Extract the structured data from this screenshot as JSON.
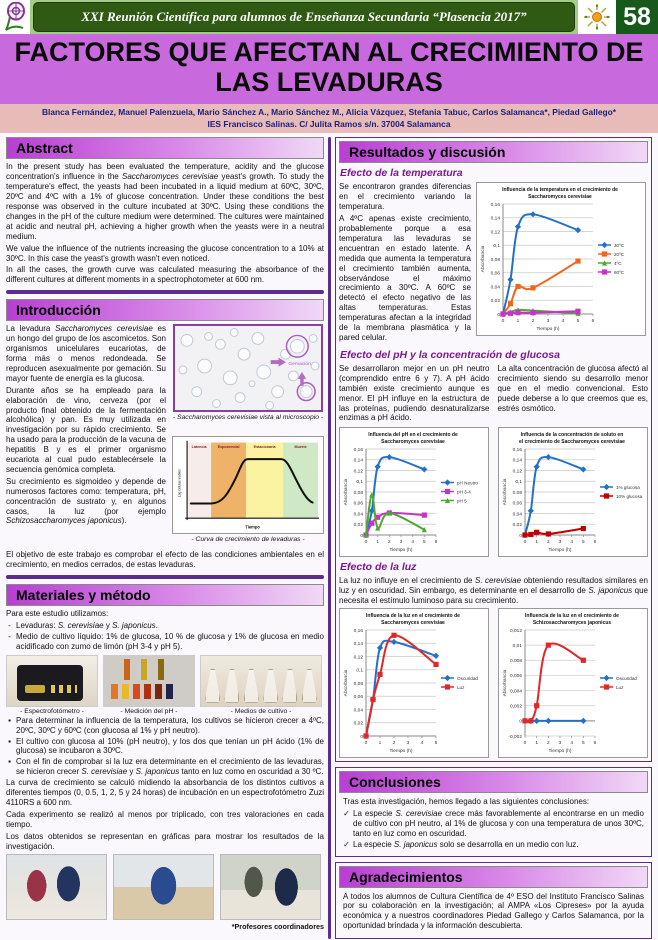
{
  "header": {
    "event_title": "XXI Reunión Científica para alumnos de Enseñanza Secundaria “Plasencia 2017”",
    "poster_number": "58"
  },
  "title": "FACTORES QUE AFECTAN AL CRECIMIENTO DE LAS LEVADURAS",
  "authors": "Blanca Fernández, Manuel Palenzuela, Mario Sánchez A., Mario Sánchez M., Alicia Vázquez, Stefania Tabuc, Carlos Salamanca*, Piedad Gallego*",
  "affiliation": "IES Francisco Salinas. C/ Julita Ramos s/n. 37004 Salamanca",
  "abstract": {
    "heading": "Abstract",
    "p1": "In the present study has been evaluated the temperature, acidity and the glucose concentration's influence in the <i>Saccharomyces cerevisiae</i> yeast's growth. To study the temperature's effect, the yeasts had been incubated in a liquid medium at 60ºC, 30ºC, 20ºC and 4ºC with a 1% of glucose concentration. Under these conditions the best response was observed in the culture incubated at 30ºC. Using these conditions the changes in the pH of the culture medium were determined. The cultures were maintained at acidic and neutral pH, achieving a higher growth when the yeasts were in a neutral medium.",
    "p2": "We value the influence of the nutrients increasing the glucose concentration to a 10% at 30ºC. In this case the yeast's growth wasn't even noticed.",
    "p3": "In all the cases, the growth curve was calculated measuring the absorbance of the different cultures at different moments in a spectrophotometer at 600 nm."
  },
  "introduction": {
    "heading": "Introducción",
    "p1": "La levadura <i>Saccharomyces cerevisiae</i> es un hongo del grupo de los ascomicetos. Son organismos unicelulares eucariotas, de forma más o menos redondeada. Se reproducen asexualmente por gemación. Su mayor fuente de energía es la glucosa.",
    "p2": "Durante años se ha empleado para la elaboración de vino, cerveza (por el producto final obtenido de la fermentación alcohólica) y pan. Es muy utilizada en investigación por su rápido crecimiento. Se ha usado para la producción de la vacuna de hepatitis B y es el primer organismo eucariota al cual pudo establecérsele la secuencia genómica completa.",
    "p3": "Su crecimiento es sigmoideo y depende de numerosos factores como: temperatura, pH, concentración de sustrato y, en algunos casos, la luz (por ejemplo <i>Schizosaccharomyces japonicus</i>).",
    "objective": "El objetivo de este trabajo es comprobar el efecto de las condiciones ambientales en el crecimiento, en medios cerrados, de estas levaduras.",
    "micro_caption": "- Saccharomyces cerevisiae vista al microscopio -",
    "micro_annotation": "Gemación",
    "growth": {
      "phases": [
        "Latencia",
        "Exponencial",
        "Estacionaria",
        "Muerte"
      ],
      "xlabel": "Tiempo",
      "ylabel": "Log células viables",
      "caption": "- Curva de crecimiento de levaduras -"
    }
  },
  "methods": {
    "heading": "Materiales y método",
    "intro": "Para este estudio utilizamos:",
    "dash_items": [
      "Levaduras: <i>S. cerevisiae</i> y <i>S. japonicus</i>.",
      "Medio de cultivo líquido: 1% de glucosa, 10 % de glucosa y 1% de glucosa en medio acidificado con zumo de limón (pH 3-4 y pH 5)."
    ],
    "photo_captions": [
      "- Espectrofotómetro -",
      "- Medición del pH -",
      "- Medios de cultivo -"
    ],
    "bullet_items": [
      "Para determinar la influencia de la temperatura, los cultivos se hicieron crecer a 4ºC, 20ºC, 30ºC y 60ºC (con glucosa al 1% y pH neutro).",
      "El cultivo con glucosa al 10% (pH neutro), y los dos que tenían un pH ácido (1% de glucosa) se incubaron a 30ºC.",
      "Con el fin de comprobar si la luz era determinante en el crecimiento de las levaduras, se hicieron crecer <i>S. cerevisiae</i> y <i>S. japonicus</i> tanto en luz como en oscuridad a 30 ºC."
    ],
    "p1": "La curva de crecimiento se calculó midiendo la absorbancia de los distintos cultivos a diferentes tiempos (0, 0.5, 1, 2, 5 y 24 horas) de incubación en un espectrofotómetro Zuzi 4110RS a 600 nm.",
    "p2": "Cada experimento se realizó al menos por triplicado, con tres valoraciones en cada tiempo.",
    "p3": "Los datos obtenidos se representan en gráficas para mostrar los resultados de la investigación.",
    "footnote": "*Profesores coordinadores"
  },
  "results": {
    "heading": "Resultados y discusión",
    "temperature": {
      "subheading": "Efecto de la temperatura",
      "p1": "Se encontraron grandes diferencias en el crecimiento variando la temperatura.",
      "p2": "A 4ºC apenas existe crecimiento, probablemente porque a esa temperatura las levaduras se encuentran en estado latente. A medida que aumenta la temperatura el crecimiento también aumenta, observándose el máximo crecimiento a 30ºC. A 60ºC se detectó el efecto negativo de las altas temperaturas. Estas temperaturas afectan a la integridad de la membrana plasmática y la pared celular."
    },
    "ph_glucose": {
      "subheading": "Efecto del pH y la concentración de glucosa",
      "left": "Se desarrollaron mejor en un pH neutro (comprendido entre 6 y 7). A pH ácido también existe crecimiento aunque es menor. El pH influye en la estructura de las proteínas, pudiendo desnaturalizarse enzimas a pH ácido.",
      "right": "La alta concentración de glucosa afectó al crecimiento siendo su desarrollo menor que en el medio convencional. Esto puede deberse a lo que creemos que es, estrés osmótico."
    },
    "light": {
      "subheading": "Efecto de la luz",
      "p": "La luz no influye en el crecimiento de <i>S. cerevisiae</i> obteniendo resultados similares en luz y en oscuridad. Sin embargo, es determinante en el desarrollo de <i>S. japonicus</i> que necesita el estímulo luminoso para su crecimiento."
    }
  },
  "conclusions": {
    "heading": "Conclusiones",
    "intro": "Tras esta investigación, hemos llegado a las siguientes conclusiones:",
    "items": [
      "La especie <i>S. cerevisiae</i> crece más favorablemente al encontrarse en un medio de cultivo con pH neutro, al 1% de glucosa y con una temperatura de unos 30ºC, tanto en luz como en oscuridad.",
      "La especie <i>S. japonicus</i> solo se desarrolla en un medio con luz."
    ]
  },
  "acknowledgements": {
    "heading": "Agradecimientos",
    "p": "A todos los alumnos de Cultura Científica de 4º ESO del Instituto Francisco Salinas por su colaboración en la investigación; al AMPA «Los Cipreses» por la ayuda económica y a nuestros coordinadores Piedad Gallego y Carlos Salamanca, por la oportunidad brindada y la información descubierta."
  },
  "chart_data": [
    {
      "type": "line",
      "title": "Influencia de la temperatura en el crecimiento de Saccharomyces cerevisiae",
      "xlabel": "Tiempo (h)",
      "ylabel": "Absorbancia",
      "x": [
        0,
        0.5,
        1,
        2,
        5
      ],
      "xlim": [
        0,
        6
      ],
      "xtick": 1,
      "ylim": [
        0,
        0.16
      ],
      "ytick": 0.02,
      "grid": true,
      "legend_position": "right",
      "series": [
        {
          "name": "30ºC",
          "color": "#2470C8",
          "marker": "diamond",
          "values": [
            0,
            0.05,
            0.127,
            0.145,
            0.122
          ]
        },
        {
          "name": "20ºC",
          "color": "#F3641D",
          "marker": "square",
          "values": [
            0,
            0.015,
            0.04,
            0.038,
            0.077
          ]
        },
        {
          "name": "4ºC",
          "color": "#4EA72E",
          "marker": "triangle",
          "values": [
            0,
            0.003,
            0.006,
            0.005,
            0.001
          ]
        },
        {
          "name": "60ºC",
          "color": "#C832C8",
          "marker": "square",
          "values": [
            0,
            0.001,
            0.002,
            0.002,
            0.004
          ]
        }
      ]
    },
    {
      "type": "line",
      "title": "Influencia del pH en el crecimiento de Saccharomyces cerevisiae",
      "xlabel": "Tiempo (h)",
      "ylabel": "Absorbancia",
      "x": [
        0,
        0.5,
        1,
        2,
        5
      ],
      "xlim": [
        0,
        6
      ],
      "xtick": 1,
      "ylim": [
        0,
        0.16
      ],
      "ytick": 0.02,
      "grid": true,
      "legend_position": "right",
      "series": [
        {
          "name": "pH Neutro",
          "color": "#2470C8",
          "marker": "diamond",
          "values": [
            0,
            0.045,
            0.127,
            0.145,
            0.122
          ]
        },
        {
          "name": "pH 3-4",
          "color": "#C832C8",
          "marker": "square",
          "values": [
            0,
            0.022,
            0.033,
            0.041,
            0.037
          ]
        },
        {
          "name": "pH 5",
          "color": "#4EA72E",
          "marker": "triangle",
          "values": [
            0,
            0.075,
            0.013,
            0.041,
            0.01
          ]
        }
      ]
    },
    {
      "type": "line",
      "title": "Influencia de la concentración de soluto en el crecimiento de Saccharomyces cerevisiae",
      "xlabel": "Tiempo (h)",
      "ylabel": "Absorbancia",
      "x": [
        0,
        0.5,
        1,
        2,
        5
      ],
      "xlim": [
        0,
        6
      ],
      "xtick": 1,
      "ylim": [
        0,
        0.16
      ],
      "ytick": 0.02,
      "grid": true,
      "legend_position": "right",
      "series": [
        {
          "name": "1% glucosa",
          "color": "#2470C8",
          "marker": "diamond",
          "values": [
            0,
            0.045,
            0.127,
            0.145,
            0.122
          ]
        },
        {
          "name": "10% glucosa",
          "color": "#C00000",
          "marker": "square",
          "values": [
            0,
            0.001,
            0.005,
            0.002,
            0.012
          ]
        }
      ]
    },
    {
      "type": "line",
      "title": "Influencia de la luz en el crecimiento de Saccharomyces cerevisiae",
      "xlabel": "Tiempo (h)",
      "ylabel": "Absorbancia",
      "x": [
        0,
        0.5,
        1,
        2,
        5
      ],
      "xlim": [
        0,
        5
      ],
      "xtick": 1,
      "ylim": [
        0,
        0.16
      ],
      "ytick": 0.02,
      "grid": true,
      "legend_position": "right",
      "series": [
        {
          "name": "Oscuridad",
          "color": "#2470C8",
          "marker": "diamond",
          "values": [
            0,
            0.055,
            0.133,
            0.142,
            0.121
          ]
        },
        {
          "name": "Luz",
          "color": "#E02828",
          "marker": "square",
          "values": [
            0,
            0.055,
            0.093,
            0.152,
            0.108
          ]
        }
      ]
    },
    {
      "type": "line",
      "title": "Influencia de la luz en el crecimiento de Schizosaccharomyces japonicus",
      "xlabel": "Tiempo (h)",
      "ylabel": "Absorbancia",
      "x": [
        0,
        0.5,
        1,
        2,
        5
      ],
      "xlim": [
        0,
        6
      ],
      "xtick": 1,
      "ylim": [
        -0.002,
        0.012
      ],
      "ytick": 0.002,
      "grid": true,
      "legend_position": "right",
      "series": [
        {
          "name": "Oscuridad",
          "color": "#2470C8",
          "marker": "diamond",
          "values": [
            0,
            0,
            0,
            0,
            0
          ]
        },
        {
          "name": "Luz",
          "color": "#E02828",
          "marker": "square",
          "values": [
            0,
            0,
            0.002,
            0.01,
            0.008
          ]
        }
      ]
    }
  ]
}
